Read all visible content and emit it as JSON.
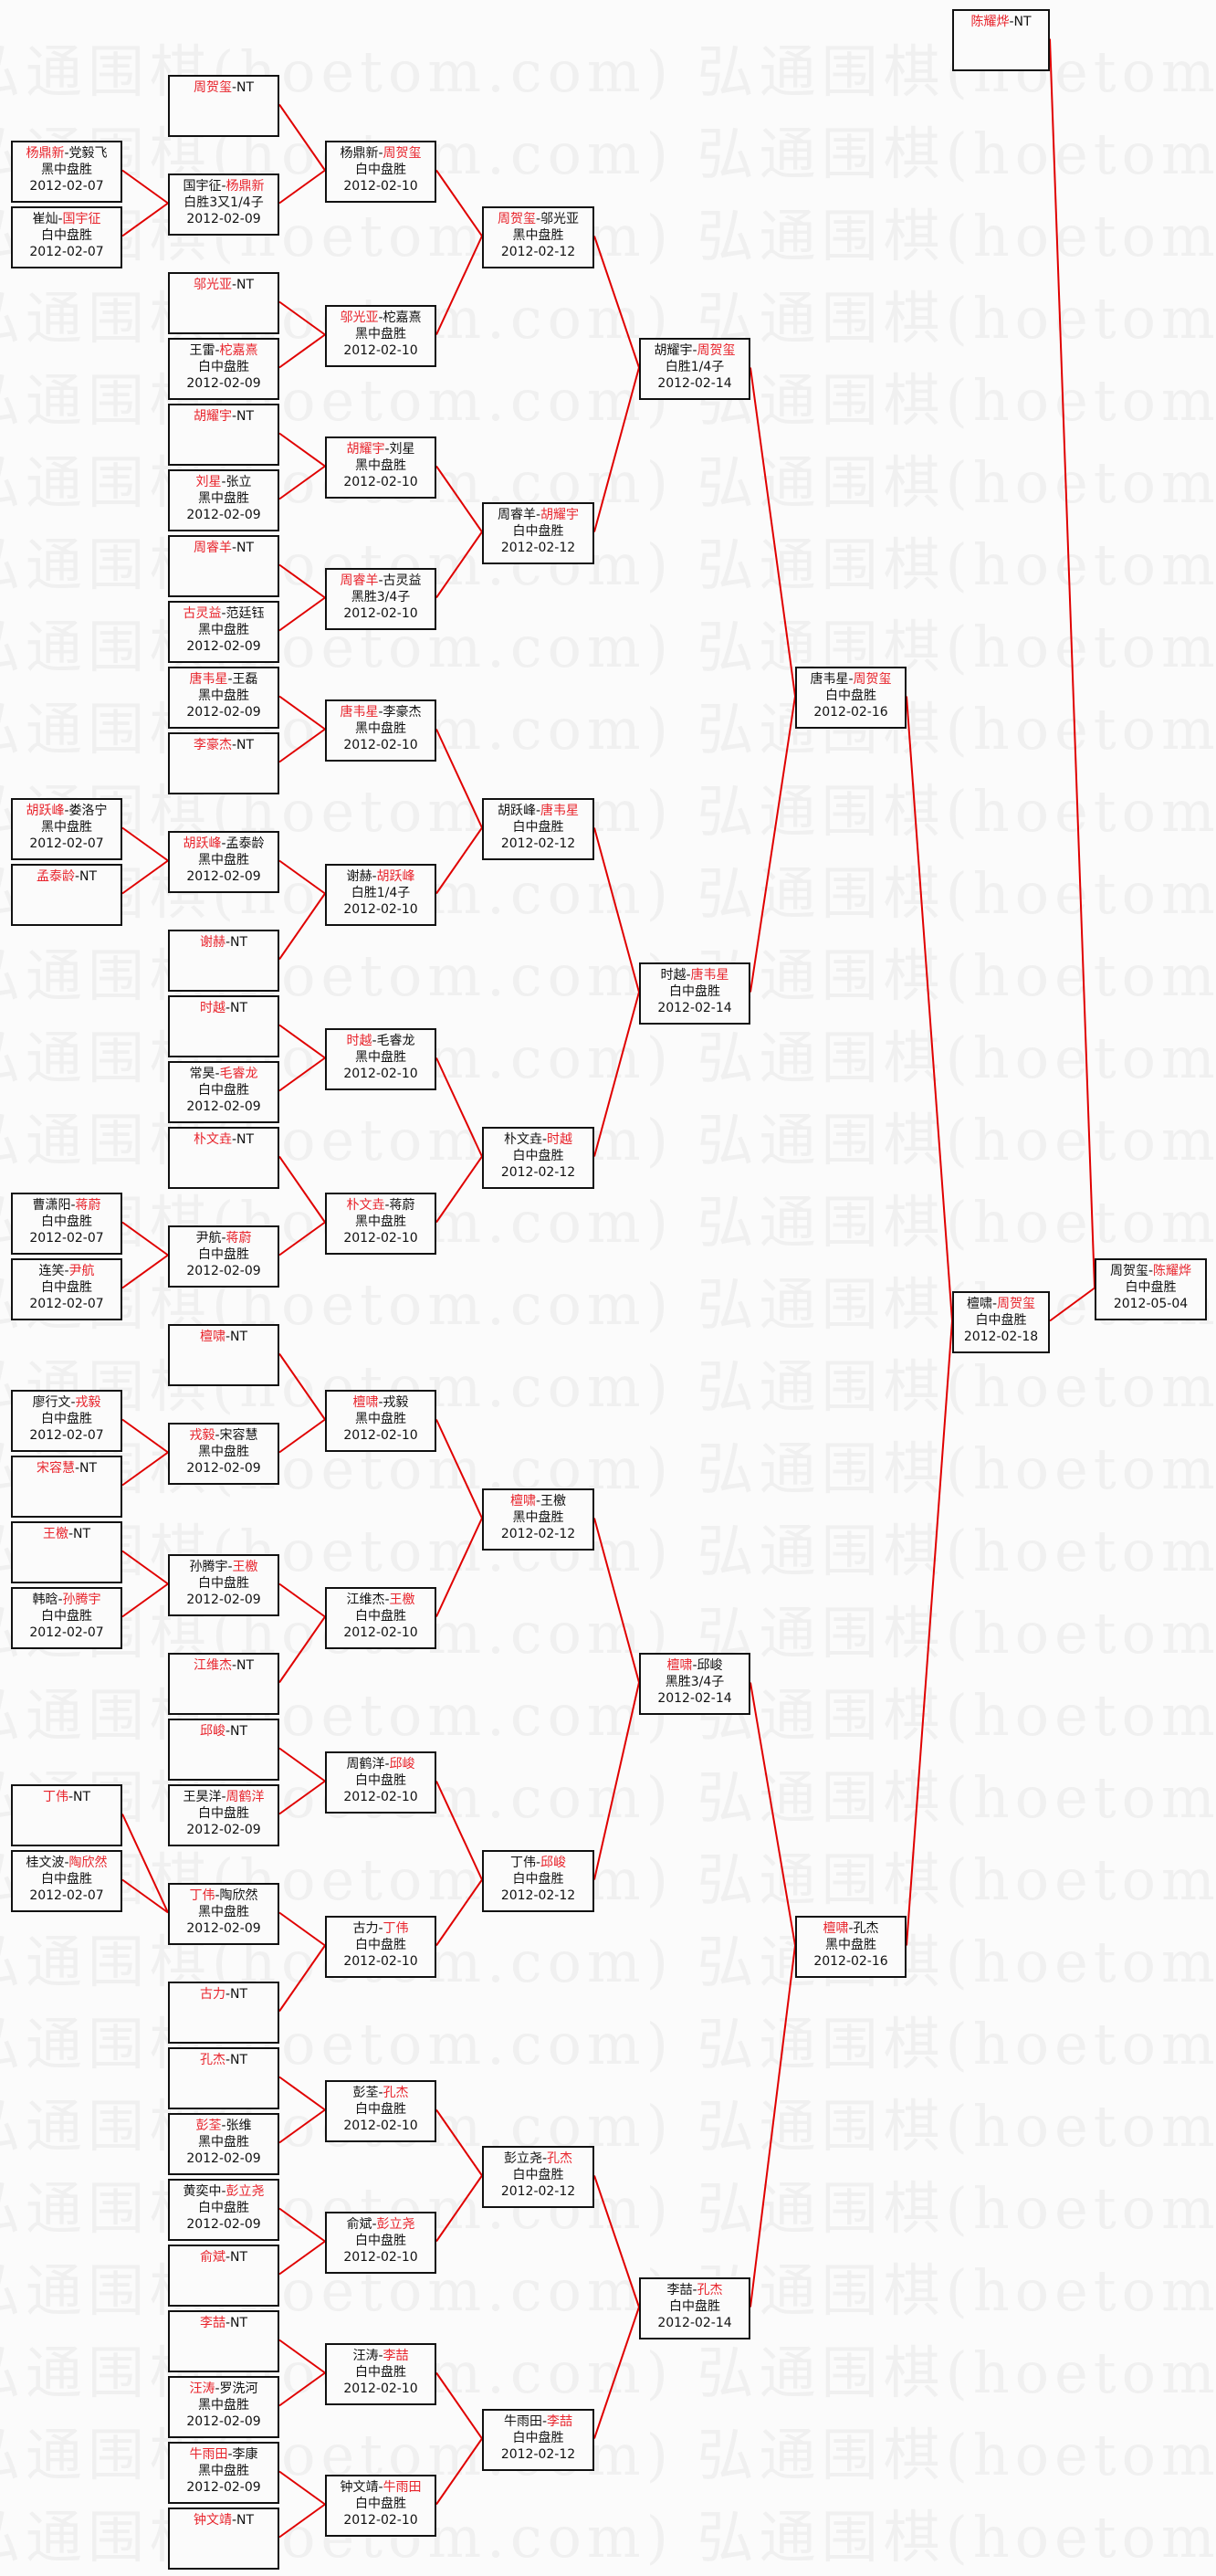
{
  "watermark": "弘通围棋(hoetom.com)",
  "separator": "-",
  "colors": {
    "winner": "#e8242c",
    "connector": "#e00000",
    "border": "#111111"
  },
  "rounds": [
    [
      {
        "p1": "杨鼎新",
        "p2": "党毅飞",
        "winner": 1,
        "result": "黑中盘胜",
        "date": "2012-02-07"
      },
      {
        "p1": "崔灿",
        "p2": "国宇征",
        "winner": 2,
        "result": "白中盘胜",
        "date": "2012-02-07"
      },
      {
        "p1": "胡跃峰",
        "p2": "娄洛宁",
        "winner": 1,
        "result": "黑中盘胜",
        "date": "2012-02-07"
      },
      {
        "p1": "孟泰龄",
        "p2": "NT",
        "winner": 1
      },
      {
        "p1": "曹潇阳",
        "p2": "蒋蔚",
        "winner": 2,
        "result": "白中盘胜",
        "date": "2012-02-07"
      },
      {
        "p1": "连笑",
        "p2": "尹航",
        "winner": 2,
        "result": "白中盘胜",
        "date": "2012-02-07"
      },
      {
        "p1": "廖行文",
        "p2": "戎毅",
        "winner": 2,
        "result": "白中盘胜",
        "date": "2012-02-07"
      },
      {
        "p1": "宋容慧",
        "p2": "NT",
        "winner": 1
      },
      {
        "p1": "王檄",
        "p2": "NT",
        "winner": 1
      },
      {
        "p1": "韩晗",
        "p2": "孙腾宇",
        "winner": 2,
        "result": "白中盘胜",
        "date": "2012-02-07"
      },
      {
        "p1": "丁伟",
        "p2": "NT",
        "winner": 1
      },
      {
        "p1": "桂文波",
        "p2": "陶欣然",
        "winner": 2,
        "result": "白中盘胜",
        "date": "2012-02-07"
      }
    ],
    [
      {
        "p1": "周贺玺",
        "p2": "NT",
        "winner": 1
      },
      {
        "p1": "国宇征",
        "p2": "杨鼎新",
        "winner": 2,
        "result": "白胜3又1/4子",
        "date": "2012-02-09"
      },
      {
        "p1": "邬光亚",
        "p2": "NT",
        "winner": 1
      },
      {
        "p1": "王雷",
        "p2": "柁嘉熹",
        "winner": 2,
        "result": "白中盘胜",
        "date": "2012-02-09"
      },
      {
        "p1": "胡耀宇",
        "p2": "NT",
        "winner": 1
      },
      {
        "p1": "刘星",
        "p2": "张立",
        "winner": 1,
        "result": "黑中盘胜",
        "date": "2012-02-09"
      },
      {
        "p1": "周睿羊",
        "p2": "NT",
        "winner": 1
      },
      {
        "p1": "古灵益",
        "p2": "范廷钰",
        "winner": 1,
        "result": "黑中盘胜",
        "date": "2012-02-09"
      },
      {
        "p1": "唐韦星",
        "p2": "王磊",
        "winner": 1,
        "result": "黑中盘胜",
        "date": "2012-02-09"
      },
      {
        "p1": "李豪杰",
        "p2": "NT",
        "winner": 1
      },
      {
        "p1": "胡跃峰",
        "p2": "孟泰龄",
        "winner": 1,
        "result": "黑中盘胜",
        "date": "2012-02-09"
      },
      {
        "p1": "谢赫",
        "p2": "NT",
        "winner": 1
      },
      {
        "p1": "时越",
        "p2": "NT",
        "winner": 1
      },
      {
        "p1": "常昊",
        "p2": "毛睿龙",
        "winner": 2,
        "result": "白中盘胜",
        "date": "2012-02-09"
      },
      {
        "p1": "朴文垚",
        "p2": "NT",
        "winner": 1
      },
      {
        "p1": "尹航",
        "p2": "蒋蔚",
        "winner": 2,
        "result": "白中盘胜",
        "date": "2012-02-09"
      },
      {
        "p1": "檀啸",
        "p2": "NT",
        "winner": 1
      },
      {
        "p1": "戎毅",
        "p2": "宋容慧",
        "winner": 1,
        "result": "黑中盘胜",
        "date": "2012-02-09"
      },
      {
        "p1": "孙腾宇",
        "p2": "王檄",
        "winner": 2,
        "result": "白中盘胜",
        "date": "2012-02-09"
      },
      {
        "p1": "江维杰",
        "p2": "NT",
        "winner": 1
      },
      {
        "p1": "邱峻",
        "p2": "NT",
        "winner": 1
      },
      {
        "p1": "王昊洋",
        "p2": "周鹤洋",
        "winner": 2,
        "result": "白中盘胜",
        "date": "2012-02-09"
      },
      {
        "p1": "丁伟",
        "p2": "陶欣然",
        "winner": 1,
        "result": "黑中盘胜",
        "date": "2012-02-09"
      },
      {
        "p1": "古力",
        "p2": "NT",
        "winner": 1
      },
      {
        "p1": "孔杰",
        "p2": "NT",
        "winner": 1
      },
      {
        "p1": "彭荃",
        "p2": "张维",
        "winner": 1,
        "result": "黑中盘胜",
        "date": "2012-02-09"
      },
      {
        "p1": "黄奕中",
        "p2": "彭立尧",
        "winner": 2,
        "result": "白中盘胜",
        "date": "2012-02-09"
      },
      {
        "p1": "俞斌",
        "p2": "NT",
        "winner": 1
      },
      {
        "p1": "李喆",
        "p2": "NT",
        "winner": 1
      },
      {
        "p1": "汪涛",
        "p2": "罗洗河",
        "winner": 1,
        "result": "黑中盘胜",
        "date": "2012-02-09"
      },
      {
        "p1": "牛雨田",
        "p2": "李康",
        "winner": 1,
        "result": "黑中盘胜",
        "date": "2012-02-09"
      },
      {
        "p1": "钟文靖",
        "p2": "NT",
        "winner": 1
      }
    ],
    [
      {
        "p1": "杨鼎新",
        "p2": "周贺玺",
        "winner": 2,
        "result": "白中盘胜",
        "date": "2012-02-10"
      },
      {
        "p1": "邬光亚",
        "p2": "柁嘉熹",
        "winner": 1,
        "result": "黑中盘胜",
        "date": "2012-02-10"
      },
      {
        "p1": "胡耀宇",
        "p2": "刘星",
        "winner": 1,
        "result": "黑中盘胜",
        "date": "2012-02-10"
      },
      {
        "p1": "周睿羊",
        "p2": "古灵益",
        "winner": 1,
        "result": "黑胜3/4子",
        "date": "2012-02-10"
      },
      {
        "p1": "唐韦星",
        "p2": "李豪杰",
        "winner": 1,
        "result": "黑中盘胜",
        "date": "2012-02-10"
      },
      {
        "p1": "谢赫",
        "p2": "胡跃峰",
        "winner": 2,
        "result": "白胜1/4子",
        "date": "2012-02-10"
      },
      {
        "p1": "时越",
        "p2": "毛睿龙",
        "winner": 1,
        "result": "黑中盘胜",
        "date": "2012-02-10"
      },
      {
        "p1": "朴文垚",
        "p2": "蒋蔚",
        "winner": 1,
        "result": "黑中盘胜",
        "date": "2012-02-10"
      },
      {
        "p1": "檀啸",
        "p2": "戎毅",
        "winner": 1,
        "result": "黑中盘胜",
        "date": "2012-02-10"
      },
      {
        "p1": "江维杰",
        "p2": "王檄",
        "winner": 2,
        "result": "白中盘胜",
        "date": "2012-02-10"
      },
      {
        "p1": "周鹤洋",
        "p2": "邱峻",
        "winner": 2,
        "result": "白中盘胜",
        "date": "2012-02-10"
      },
      {
        "p1": "古力",
        "p2": "丁伟",
        "winner": 2,
        "result": "白中盘胜",
        "date": "2012-02-10"
      },
      {
        "p1": "彭荃",
        "p2": "孔杰",
        "winner": 2,
        "result": "白中盘胜",
        "date": "2012-02-10"
      },
      {
        "p1": "俞斌",
        "p2": "彭立尧",
        "winner": 2,
        "result": "白中盘胜",
        "date": "2012-02-10"
      },
      {
        "p1": "汪涛",
        "p2": "李喆",
        "winner": 2,
        "result": "白中盘胜",
        "date": "2012-02-10"
      },
      {
        "p1": "钟文靖",
        "p2": "牛雨田",
        "winner": 2,
        "result": "白中盘胜",
        "date": "2012-02-10"
      }
    ],
    [
      {
        "p1": "周贺玺",
        "p2": "邬光亚",
        "winner": 1,
        "result": "黑中盘胜",
        "date": "2012-02-12"
      },
      {
        "p1": "周睿羊",
        "p2": "胡耀宇",
        "winner": 2,
        "result": "白中盘胜",
        "date": "2012-02-12"
      },
      {
        "p1": "胡跃峰",
        "p2": "唐韦星",
        "winner": 2,
        "result": "白中盘胜",
        "date": "2012-02-12"
      },
      {
        "p1": "朴文垚",
        "p2": "时越",
        "winner": 2,
        "result": "白中盘胜",
        "date": "2012-02-12"
      },
      {
        "p1": "檀啸",
        "p2": "王檄",
        "winner": 1,
        "result": "黑中盘胜",
        "date": "2012-02-12"
      },
      {
        "p1": "丁伟",
        "p2": "邱峻",
        "winner": 2,
        "result": "白中盘胜",
        "date": "2012-02-12"
      },
      {
        "p1": "彭立尧",
        "p2": "孔杰",
        "winner": 2,
        "result": "白中盘胜",
        "date": "2012-02-12"
      },
      {
        "p1": "牛雨田",
        "p2": "李喆",
        "winner": 2,
        "result": "白中盘胜",
        "date": "2012-02-12"
      }
    ],
    [
      {
        "p1": "胡耀宇",
        "p2": "周贺玺",
        "winner": 2,
        "result": "白胜1/4子",
        "date": "2012-02-14"
      },
      {
        "p1": "时越",
        "p2": "唐韦星",
        "winner": 2,
        "result": "白中盘胜",
        "date": "2012-02-14"
      },
      {
        "p1": "檀啸",
        "p2": "邱峻",
        "winner": 1,
        "result": "黑胜3/4子",
        "date": "2012-02-14"
      },
      {
        "p1": "李喆",
        "p2": "孔杰",
        "winner": 2,
        "result": "白中盘胜",
        "date": "2012-02-14"
      }
    ],
    [
      {
        "p1": "唐韦星",
        "p2": "周贺玺",
        "winner": 2,
        "result": "白中盘胜",
        "date": "2012-02-16"
      },
      {
        "p1": "檀啸",
        "p2": "孔杰",
        "winner": 1,
        "result": "黑中盘胜",
        "date": "2012-02-16"
      }
    ],
    [
      {
        "p1": "陈耀烨",
        "p2": "NT",
        "winner": 1
      },
      {
        "p1": "檀啸",
        "p2": "周贺玺",
        "winner": 2,
        "result": "白中盘胜",
        "date": "2012-02-18"
      }
    ],
    [
      {
        "p1": "周贺玺",
        "p2": "陈耀烨",
        "winner": 2,
        "result": "白中盘胜",
        "date": "2012-05-04"
      }
    ]
  ]
}
